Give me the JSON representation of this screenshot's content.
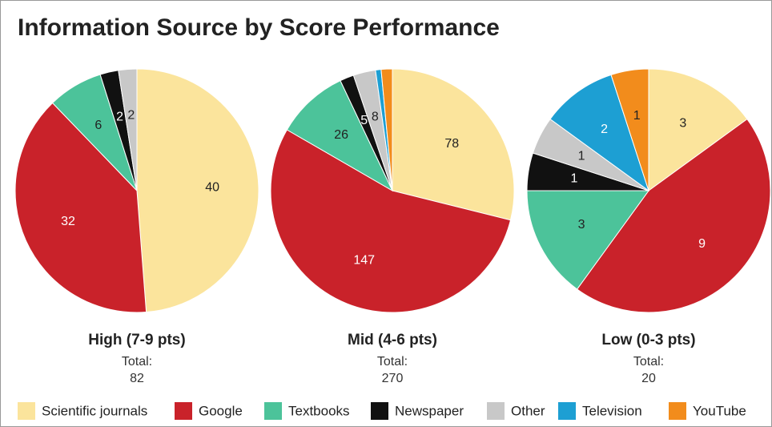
{
  "title": "Information Source by Score Performance",
  "legend": {
    "categories": [
      "Scientific journals",
      "Google",
      "Textbooks",
      "Newspaper",
      "Other",
      "Television",
      "YouTube"
    ],
    "colors": [
      "#fbe49c",
      "#c9222a",
      "#4cc39a",
      "#111111",
      "#c8c8c8",
      "#1d9fd3",
      "#f28c1c"
    ]
  },
  "chart_data": [
    {
      "type": "pie",
      "title": "High (7-9 pts)",
      "total_label": "Total:",
      "total": 82,
      "values": [
        40,
        32,
        6,
        2,
        2,
        0,
        0
      ]
    },
    {
      "type": "pie",
      "title": "Mid (4-6 pts)",
      "total_label": "Total:",
      "total": 270,
      "values": [
        78,
        147,
        26,
        5,
        8,
        2,
        4
      ]
    },
    {
      "type": "pie",
      "title": "Low (0-3 pts)",
      "total_label": "Total:",
      "total": 20,
      "values": [
        3,
        9,
        3,
        1,
        1,
        2,
        1
      ]
    }
  ]
}
